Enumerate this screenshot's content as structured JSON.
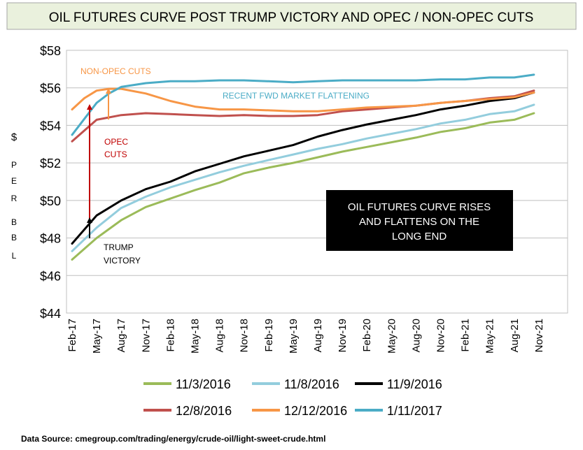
{
  "chart_data": {
    "type": "line",
    "title": "OIL FUTURES CURVE POST TRUMP VICTORY AND OPEC / NON-OPEC CUTS",
    "ylabel": "$ PER BBL",
    "ylim": [
      44,
      58
    ],
    "y_ticks": [
      "$44",
      "$46",
      "$48",
      "$50",
      "$52",
      "$54",
      "$56",
      "$58"
    ],
    "x_ticks": [
      "Feb-17",
      "May-17",
      "Aug-17",
      "Nov-17",
      "Feb-18",
      "May-18",
      "Aug-18",
      "Nov-18",
      "Feb-19",
      "May-19",
      "Aug-19",
      "Nov-19",
      "Feb-20",
      "May-20",
      "Aug-20",
      "Nov-20",
      "Feb-21",
      "May-21",
      "Aug-21",
      "Nov-21"
    ],
    "grid": true,
    "legend_position": "bottom",
    "series": [
      {
        "name": "11/3/2016",
        "color": "#9bbb59",
        "values": [
          [
            0,
            46.85
          ],
          [
            1,
            48.0
          ],
          [
            2,
            48.95
          ],
          [
            3,
            49.65
          ],
          [
            4,
            50.1
          ],
          [
            5,
            50.55
          ],
          [
            6,
            50.95
          ],
          [
            7,
            51.45
          ],
          [
            8,
            51.75
          ],
          [
            9,
            52.0
          ],
          [
            10,
            52.3
          ],
          [
            11,
            52.6
          ],
          [
            12,
            52.85
          ],
          [
            13,
            53.1
          ],
          [
            14,
            53.35
          ],
          [
            15,
            53.65
          ],
          [
            16,
            53.85
          ],
          [
            17,
            54.15
          ],
          [
            18,
            54.3
          ],
          [
            18.8,
            54.65
          ]
        ]
      },
      {
        "name": "11/8/2016",
        "color": "#93cddd",
        "values": [
          [
            0,
            47.3
          ],
          [
            1,
            48.55
          ],
          [
            2,
            49.6
          ],
          [
            3,
            50.2
          ],
          [
            4,
            50.7
          ],
          [
            5,
            51.1
          ],
          [
            6,
            51.5
          ],
          [
            7,
            51.85
          ],
          [
            8,
            52.15
          ],
          [
            9,
            52.45
          ],
          [
            10,
            52.75
          ],
          [
            11,
            53.0
          ],
          [
            12,
            53.3
          ],
          [
            13,
            53.55
          ],
          [
            14,
            53.8
          ],
          [
            15,
            54.1
          ],
          [
            16,
            54.3
          ],
          [
            17,
            54.6
          ],
          [
            18,
            54.75
          ],
          [
            18.8,
            55.1
          ]
        ]
      },
      {
        "name": "11/9/2016",
        "color": "#000000",
        "values": [
          [
            0,
            47.7
          ],
          [
            1,
            49.2
          ],
          [
            2,
            50.0
          ],
          [
            3,
            50.6
          ],
          [
            4,
            51.0
          ],
          [
            5,
            51.55
          ],
          [
            6,
            51.95
          ],
          [
            7,
            52.35
          ],
          [
            8,
            52.65
          ],
          [
            9,
            52.95
          ],
          [
            10,
            53.4
          ],
          [
            11,
            53.75
          ],
          [
            12,
            54.05
          ],
          [
            13,
            54.3
          ],
          [
            14,
            54.55
          ],
          [
            15,
            54.85
          ],
          [
            16,
            55.05
          ],
          [
            17,
            55.3
          ],
          [
            18,
            55.45
          ],
          [
            18.8,
            55.75
          ]
        ]
      },
      {
        "name": "12/8/2016",
        "color": "#c0504d",
        "values": [
          [
            0,
            53.15
          ],
          [
            1,
            54.3
          ],
          [
            2,
            54.55
          ],
          [
            3,
            54.65
          ],
          [
            4,
            54.6
          ],
          [
            5,
            54.55
          ],
          [
            6,
            54.5
          ],
          [
            7,
            54.55
          ],
          [
            8,
            54.5
          ],
          [
            9,
            54.5
          ],
          [
            10,
            54.55
          ],
          [
            11,
            54.75
          ],
          [
            12,
            54.85
          ],
          [
            13,
            54.95
          ],
          [
            14,
            55.05
          ],
          [
            15,
            55.2
          ],
          [
            16,
            55.3
          ],
          [
            17,
            55.45
          ],
          [
            18,
            55.55
          ],
          [
            18.8,
            55.85
          ]
        ]
      },
      {
        "name": "12/12/2016",
        "color": "#f79646",
        "values": [
          [
            0,
            54.85
          ],
          [
            0.5,
            55.45
          ],
          [
            1,
            55.85
          ],
          [
            1.5,
            55.95
          ],
          [
            2,
            55.95
          ],
          [
            3,
            55.7
          ],
          [
            4,
            55.3
          ],
          [
            5,
            55.0
          ],
          [
            6,
            54.85
          ],
          [
            7,
            54.85
          ],
          [
            8,
            54.8
          ],
          [
            9,
            54.75
          ],
          [
            10,
            54.75
          ],
          [
            11,
            54.85
          ],
          [
            12,
            54.95
          ],
          [
            13,
            55.0
          ],
          [
            14,
            55.05
          ],
          [
            15,
            55.2
          ],
          [
            16,
            55.3
          ],
          [
            17,
            55.4
          ],
          [
            18,
            55.5
          ],
          [
            18.8,
            55.75
          ]
        ]
      },
      {
        "name": "1/11/2017",
        "color": "#4bacc6",
        "values": [
          [
            0,
            53.5
          ],
          [
            1,
            55.2
          ],
          [
            1.5,
            55.7
          ],
          [
            2,
            56.05
          ],
          [
            3,
            56.25
          ],
          [
            4,
            56.35
          ],
          [
            5,
            56.35
          ],
          [
            6,
            56.4
          ],
          [
            7,
            56.4
          ],
          [
            8,
            56.35
          ],
          [
            9,
            56.3
          ],
          [
            10,
            56.35
          ],
          [
            11,
            56.4
          ],
          [
            12,
            56.4
          ],
          [
            13,
            56.4
          ],
          [
            14,
            56.4
          ],
          [
            15,
            56.45
          ],
          [
            16,
            56.45
          ],
          [
            17,
            56.55
          ],
          [
            18,
            56.55
          ],
          [
            18.8,
            56.7
          ]
        ]
      }
    ],
    "annotations": {
      "non_opec": "NON-OPEC CUTS",
      "flattening": "RECENT  FWD MARKET FLATTENING",
      "opec_line1": "OPEC",
      "opec_line2": "CUTS",
      "trump_line1": "TRUMP",
      "trump_line2": "VICTORY",
      "box_line1": "OIL  FUTURES CURVE  RISES",
      "box_line2": "AND FLATTENS ON THE",
      "box_line3": "LONG END"
    },
    "source": "Data Source: cmegroup.com/trading/energy/crude-oil/light-sweet-crude.html"
  }
}
